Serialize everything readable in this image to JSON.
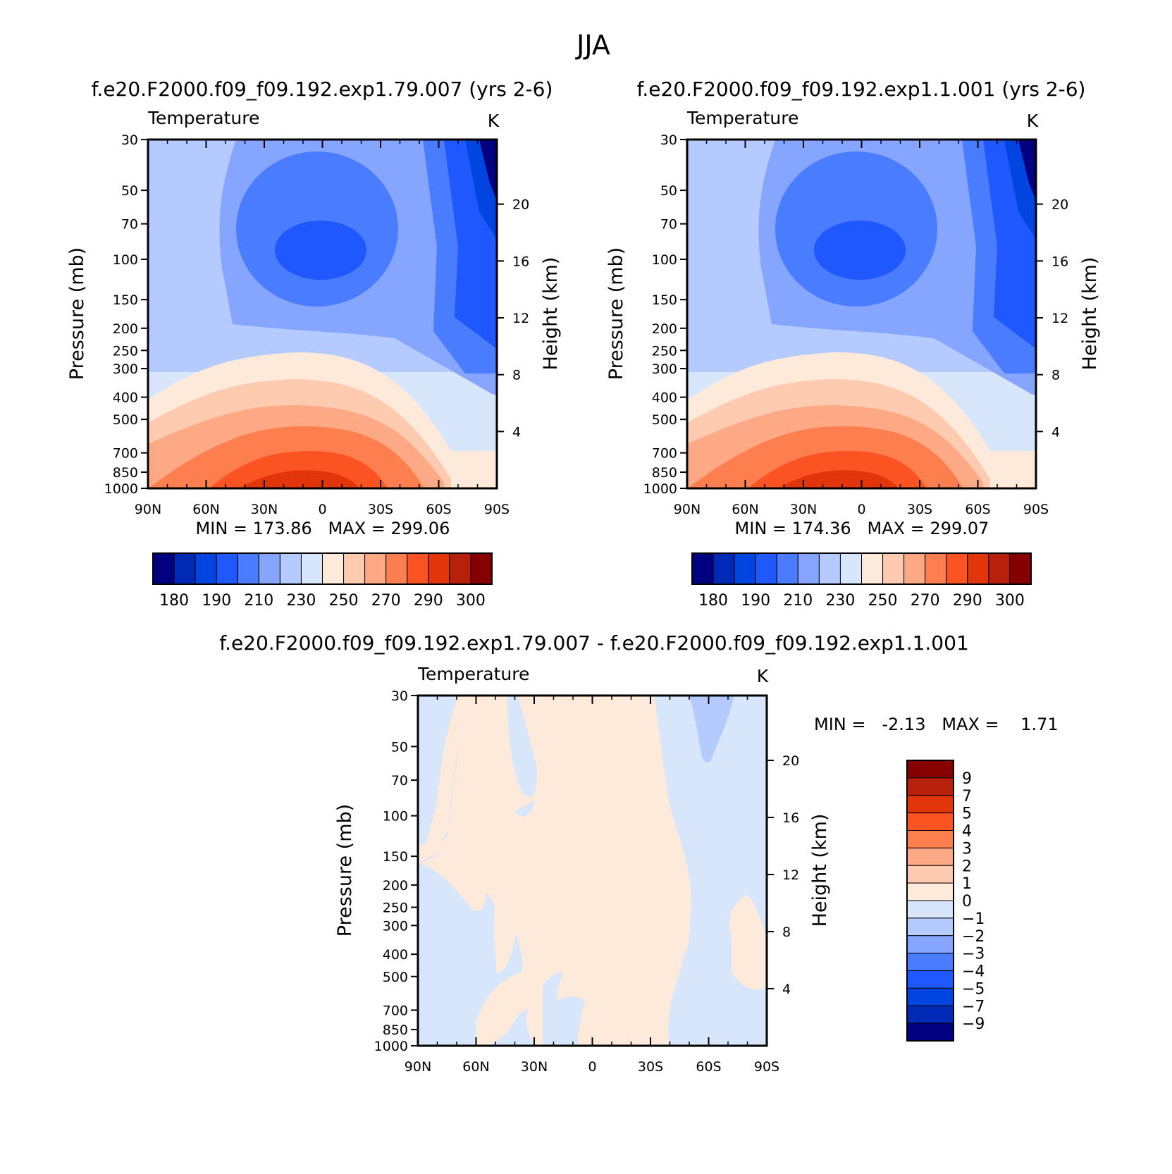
{
  "figure_title": "JJA",
  "colors": {
    "temp_levels": [
      "#000080",
      "#0029b5",
      "#0045e0",
      "#1f58ff",
      "#4a7cff",
      "#85a5ff",
      "#b5cbff",
      "#d8e6fc",
      "#feeada",
      "#fecab0",
      "#fda985",
      "#fd7e4e",
      "#fc5322",
      "#e3350b",
      "#b7200b",
      "#860000"
    ],
    "diff_palette": [
      "#000080",
      "#0029b5",
      "#0045e0",
      "#1f58ff",
      "#4a7cff",
      "#85a5ff",
      "#b5cbff",
      "#d8e6fc",
      "#feeada",
      "#fecab0",
      "#fda985",
      "#fd7e4e",
      "#fc5322",
      "#e3350b",
      "#b7200b",
      "#860000"
    ]
  },
  "chart_data": [
    {
      "id": "panel-a",
      "type": "heatmap",
      "title": "f.e20.F2000.f09_f09.192.exp1.79.007 (yrs 2-6)",
      "variable": "Temperature",
      "units": "K",
      "xlabel": "",
      "ylabel": "Pressure (mb)",
      "ylabel_right": "Height (km)",
      "x_ticks": [
        "90N",
        "60N",
        "30N",
        "0",
        "30S",
        "60S",
        "90S"
      ],
      "x_range": [
        90,
        -90
      ],
      "y_ticks": [
        30,
        50,
        70,
        100,
        150,
        200,
        250,
        300,
        400,
        500,
        700,
        850,
        1000
      ],
      "y_range": [
        30,
        1000
      ],
      "y_scale": "log",
      "height_ticks": [
        20,
        16,
        12,
        8,
        4
      ],
      "min_max_text": "MIN = 173.86   MAX = 299.06",
      "min": 173.86,
      "max": 299.06,
      "contour_levels": [
        180,
        185,
        190,
        200,
        210,
        220,
        230,
        240,
        250,
        260,
        270,
        280,
        290,
        295,
        300
      ],
      "colorbar_labels": [
        "180",
        "190",
        "210",
        "230",
        "250",
        "270",
        "290",
        "300"
      ]
    },
    {
      "id": "panel-b",
      "type": "heatmap",
      "title": "f.e20.F2000.f09_f09.192.exp1.1.001 (yrs 2-6)",
      "variable": "Temperature",
      "units": "K",
      "xlabel": "",
      "ylabel": "Pressure (mb)",
      "ylabel_right": "Height (km)",
      "x_ticks": [
        "90N",
        "60N",
        "30N",
        "0",
        "30S",
        "60S",
        "90S"
      ],
      "x_range": [
        90,
        -90
      ],
      "y_ticks": [
        30,
        50,
        70,
        100,
        150,
        200,
        250,
        300,
        400,
        500,
        700,
        850,
        1000
      ],
      "y_range": [
        30,
        1000
      ],
      "y_scale": "log",
      "height_ticks": [
        20,
        16,
        12,
        8,
        4
      ],
      "min_max_text": "MIN = 174.36   MAX = 299.07",
      "min": 174.36,
      "max": 299.07,
      "contour_levels": [
        180,
        185,
        190,
        200,
        210,
        220,
        230,
        240,
        250,
        260,
        270,
        280,
        290,
        295,
        300
      ],
      "colorbar_labels": [
        "180",
        "190",
        "210",
        "230",
        "250",
        "270",
        "290",
        "300"
      ]
    },
    {
      "id": "panel-diff",
      "type": "heatmap",
      "title": "f.e20.F2000.f09_f09.192.exp1.79.007 - f.e20.F2000.f09_f09.192.exp1.1.001",
      "variable": "Temperature",
      "units": "K",
      "xlabel": "",
      "ylabel": "Pressure (mb)",
      "ylabel_right": "Height (km)",
      "x_ticks": [
        "90N",
        "60N",
        "30N",
        "0",
        "30S",
        "60S",
        "90S"
      ],
      "x_range": [
        90,
        -90
      ],
      "y_ticks": [
        30,
        50,
        70,
        100,
        150,
        200,
        250,
        300,
        400,
        500,
        700,
        850,
        1000
      ],
      "y_range": [
        30,
        1000
      ],
      "y_scale": "log",
      "height_ticks": [
        20,
        16,
        12,
        8,
        4
      ],
      "min_max_text": "MIN =   -2.13   MAX =    1.71",
      "min": -2.13,
      "max": 1.71,
      "contour_levels": [
        -9,
        -7,
        -5,
        -4,
        -3,
        -2,
        -1,
        0,
        1,
        2,
        3,
        4,
        5,
        7,
        9
      ],
      "colorbar_labels": [
        "9",
        "7",
        "5",
        "4",
        "3",
        "2",
        "1",
        "0",
        "-1",
        "-2",
        "-3",
        "-4",
        "-5",
        "-7",
        "-9"
      ]
    }
  ]
}
